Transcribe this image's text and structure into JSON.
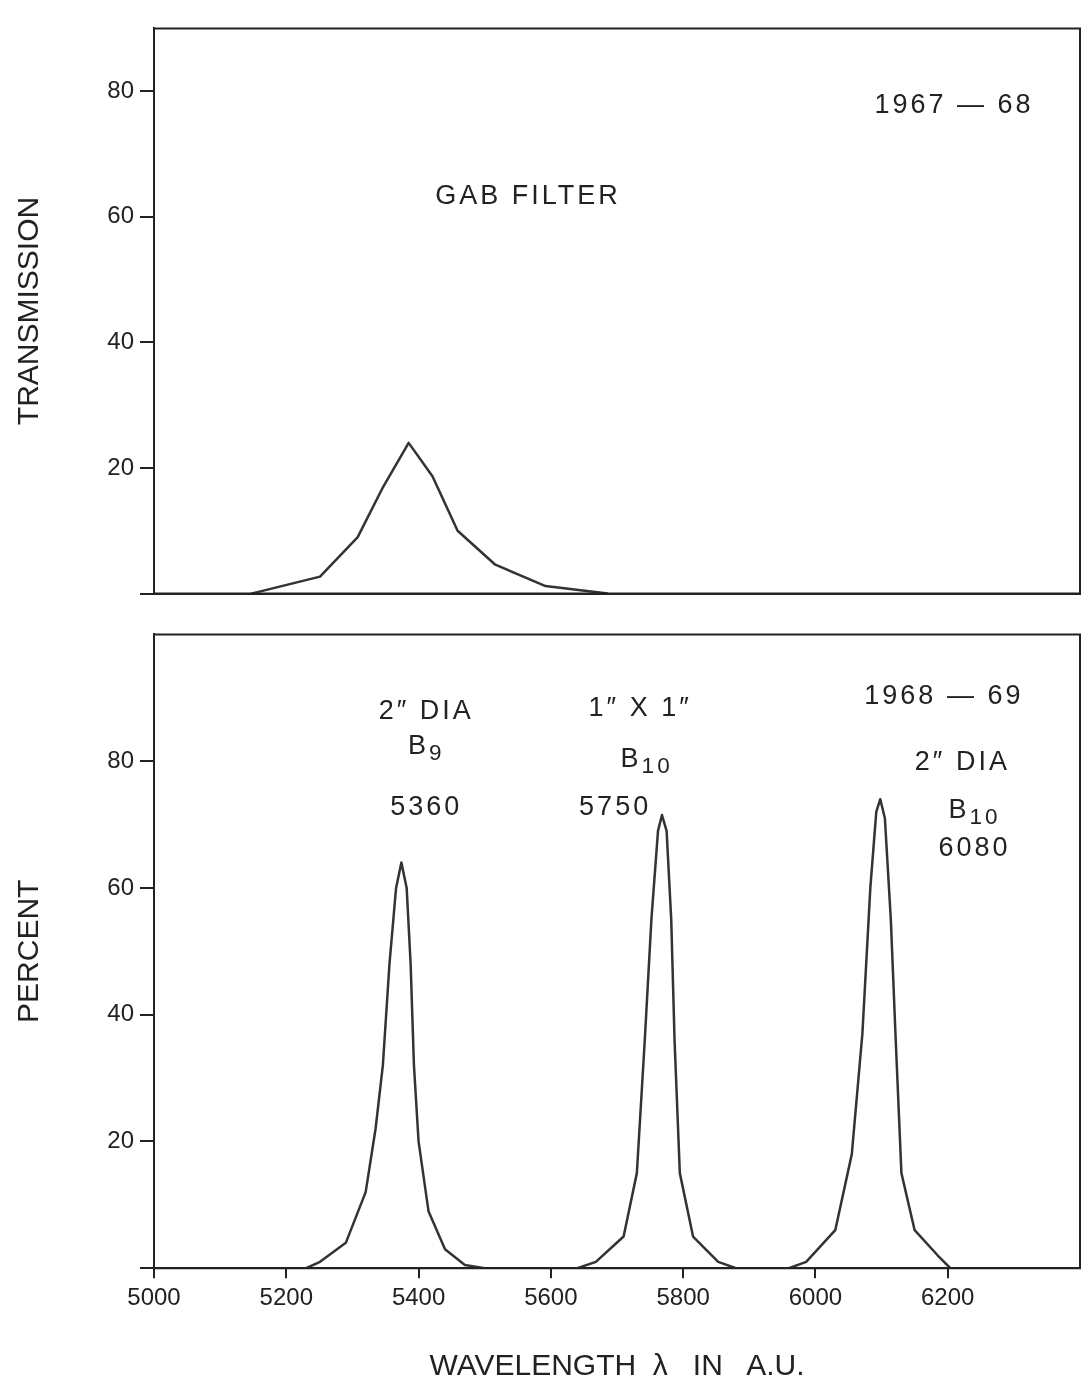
{
  "chart_data": [
    {
      "type": "line",
      "ylabel": "TRANSMISSION",
      "annotations": [
        "1967 — 68",
        "GAB FILTER"
      ],
      "xlim": [
        5000,
        6400
      ],
      "xticks": [
        5000,
        5200,
        5400,
        5600,
        5800,
        6000,
        6200
      ],
      "ylim": [
        0,
        90
      ],
      "yticks": [
        {
          "value": 0,
          "label": null
        },
        20,
        40,
        60,
        80
      ],
      "tick_labels": "y",
      "grid": false,
      "legend": false,
      "marker": "none",
      "line_style": "solid",
      "series": [
        {
          "color": "#333333",
          "x": [
            5147,
            5251,
            5308,
            5345,
            5385,
            5421,
            5459,
            5516,
            5592,
            5686
          ],
          "values": [
            0,
            2.7,
            9,
            16.7,
            24,
            18.7,
            10,
            4.6,
            1.2,
            0
          ]
        }
      ]
    },
    {
      "type": "line",
      "ylabel": "PERCENT",
      "xlabel": "WAVELENGTH  λ   IN   A.U.",
      "annotations": [
        "1968 — 69",
        "2″ DIA",
        "B$_{9}$",
        "5360",
        "1″ X 1″",
        "B$_{10}$",
        "5750",
        "2″ DIA",
        "B$_{10}$",
        "6080"
      ],
      "xlim": [
        5000,
        6400
      ],
      "xticks": [
        5000,
        5200,
        5400,
        5600,
        5800,
        6000,
        6200
      ],
      "ylim": [
        0,
        100
      ],
      "yticks": [
        {
          "value": 0,
          "label": null
        },
        20,
        40,
        60,
        80
      ],
      "grid": false,
      "legend": false,
      "marker": "none",
      "line_style": "solid",
      "series": [
        {
          "color": "#333333",
          "x": [
            5230,
            5251,
            5290,
            5320,
            5335,
            5346,
            5356,
            5366,
            5374,
            5382,
            5388,
            5393,
            5400,
            5415,
            5440,
            5470,
            5500
          ],
          "values": [
            0,
            1,
            4,
            12,
            22,
            32,
            48,
            60,
            64,
            60,
            48,
            32,
            20,
            9,
            3,
            0.5,
            0
          ]
        },
        {
          "color": "#333333",
          "x": [
            5640,
            5668,
            5710,
            5730,
            5742,
            5752,
            5762,
            5768,
            5775,
            5782,
            5787,
            5795,
            5815,
            5853,
            5880
          ],
          "values": [
            0,
            1,
            5,
            15,
            36,
            55,
            69,
            71.5,
            69,
            55,
            36,
            15,
            5,
            1,
            0
          ]
        },
        {
          "color": "#333333",
          "x": [
            5960,
            5986,
            6030,
            6055,
            6071,
            6083,
            6092,
            6098,
            6105,
            6114,
            6121,
            6130,
            6150,
            6185,
            6204
          ],
          "values": [
            0,
            1,
            6,
            18,
            37,
            60,
            72,
            74,
            71,
            55,
            37,
            15,
            6,
            2,
            0
          ]
        }
      ]
    }
  ]
}
